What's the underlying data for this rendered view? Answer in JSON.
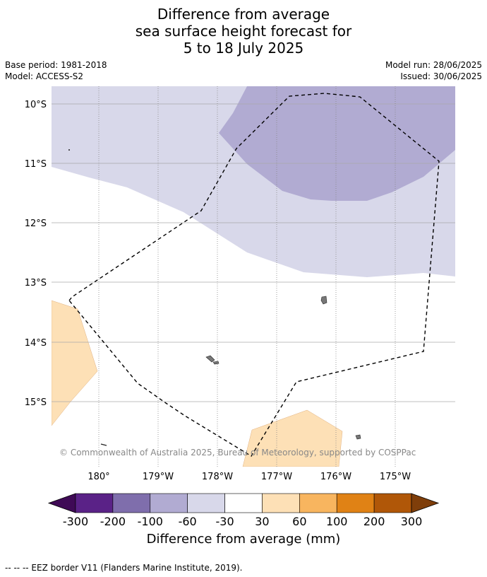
{
  "title_lines": [
    "Difference from average",
    "sea surface height forecast for",
    "5 to 18 July 2025"
  ],
  "meta": {
    "base_period": "Base period: 1981-2018",
    "model": "Model: ACCESS-S2",
    "model_run": "Model run: 28/06/2025",
    "issued": "Issued: 30/06/2025"
  },
  "map": {
    "lat_labels": [
      "10°S",
      "11°S",
      "12°S",
      "13°S",
      "14°S",
      "15°S"
    ],
    "lon_labels": [
      "180°",
      "179°W",
      "178°W",
      "177°W",
      "176°W",
      "175°W"
    ],
    "copyright": "© Commonwealth of Australia 2025, Bureau of Meteorology, supported by COSPPac",
    "colors": {
      "minus_30_60": "#d8d8ea",
      "minus_60_100": "#b1abd2",
      "plus_30_60": "#fde0b6",
      "land": "#777777",
      "grid": "#aaaaaa"
    }
  },
  "colorbar": {
    "ticks": [
      "-300",
      "-200",
      "-100",
      "-60",
      "-30",
      "30",
      "60",
      "100",
      "200",
      "300"
    ],
    "colors": [
      "#5a2287",
      "#7f6eac",
      "#b1abd2",
      "#d8d8ea",
      "#ffffff",
      "#fde0b6",
      "#f8b55f",
      "#e08215",
      "#b05708"
    ],
    "under_color": "#3f0a56",
    "over_color": "#7f3e0a",
    "label": "Difference from average (mm)"
  },
  "footnote": "--  --  -- EEZ border V11 (Flanders Marine Institute, 2019)."
}
